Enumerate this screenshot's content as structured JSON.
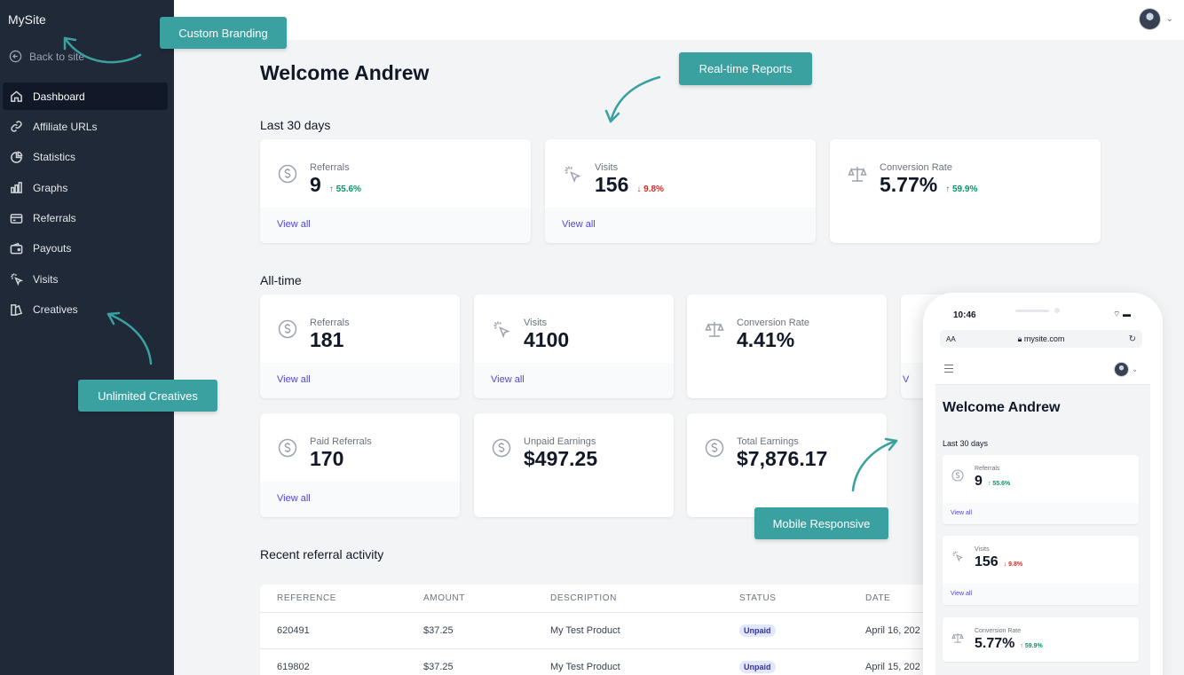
{
  "sidebar": {
    "brand": "MySite",
    "back_label": "Back to site",
    "items": [
      {
        "label": "Dashboard",
        "icon": "home-icon"
      },
      {
        "label": "Affiliate URLs",
        "icon": "link-icon"
      },
      {
        "label": "Statistics",
        "icon": "pie-chart-icon"
      },
      {
        "label": "Graphs",
        "icon": "bar-chart-icon"
      },
      {
        "label": "Referrals",
        "icon": "card-icon"
      },
      {
        "label": "Payouts",
        "icon": "wallet-icon"
      },
      {
        "label": "Visits",
        "icon": "cursor-click-icon"
      },
      {
        "label": "Creatives",
        "icon": "creative-icon"
      }
    ]
  },
  "main": {
    "title": "Welcome Andrew",
    "last30_label": "Last 30 days",
    "last30": [
      {
        "label": "Referrals",
        "value": "9",
        "delta": "55.6%",
        "direction": "up",
        "footer": "View all",
        "icon": "dollar-icon"
      },
      {
        "label": "Visits",
        "value": "156",
        "delta": "9.8%",
        "direction": "down",
        "footer": "View all",
        "icon": "cursor-click-icon"
      },
      {
        "label": "Conversion Rate",
        "value": "5.77%",
        "delta": "59.9%",
        "direction": "up",
        "footer": "",
        "icon": "scale-icon"
      }
    ],
    "alltime_label": "All-time",
    "alltime": [
      {
        "label": "Referrals",
        "value": "181",
        "footer": "View all",
        "icon": "dollar-icon"
      },
      {
        "label": "Visits",
        "value": "4100",
        "footer": "View all",
        "icon": "cursor-click-icon"
      },
      {
        "label": "Conversion Rate",
        "value": "4.41%",
        "footer": "",
        "icon": "scale-icon"
      },
      {
        "label": "Paid Referrals",
        "value": "170",
        "footer": "View all",
        "icon": "dollar-icon"
      },
      {
        "label": "Unpaid Earnings",
        "value": "$497.25",
        "footer": "",
        "icon": "dollar-icon"
      },
      {
        "label": "Total Earnings",
        "value": "$7,876.17",
        "footer": "",
        "icon": "dollar-icon"
      }
    ],
    "recent_label": "Recent referral activity",
    "table": {
      "headers": [
        "REFERENCE",
        "AMOUNT",
        "DESCRIPTION",
        "STATUS",
        "DATE"
      ],
      "rows": [
        [
          "620491",
          "$37.25",
          "My Test Product",
          "Unpaid",
          "April 16, 202"
        ],
        [
          "619802",
          "$37.25",
          "My Test Product",
          "Unpaid",
          "April 15, 202"
        ]
      ]
    }
  },
  "callouts": {
    "branding": "Custom Branding",
    "reports": "Real-time Reports",
    "creatives": "Unlimited Creatives",
    "mobile": "Mobile Responsive"
  },
  "phone": {
    "time": "10:46",
    "aa": "AA",
    "url": "mysite.com",
    "title": "Welcome Andrew",
    "subtitle": "Last 30 days",
    "cards": [
      {
        "label": "Referrals",
        "value": "9",
        "delta": "55.6%",
        "direction": "up",
        "footer": "View all"
      },
      {
        "label": "Visits",
        "value": "156",
        "delta": "9.8%",
        "direction": "down",
        "footer": "View all"
      },
      {
        "label": "Conversion Rate",
        "value": "5.77%",
        "delta": "59.9%",
        "direction": "up",
        "footer": ""
      }
    ]
  },
  "colors": {
    "sidebar": "#1f2937",
    "accent": "#3aa0a0",
    "link": "#4f46e5",
    "up": "#059669",
    "down": "#dc2626"
  }
}
